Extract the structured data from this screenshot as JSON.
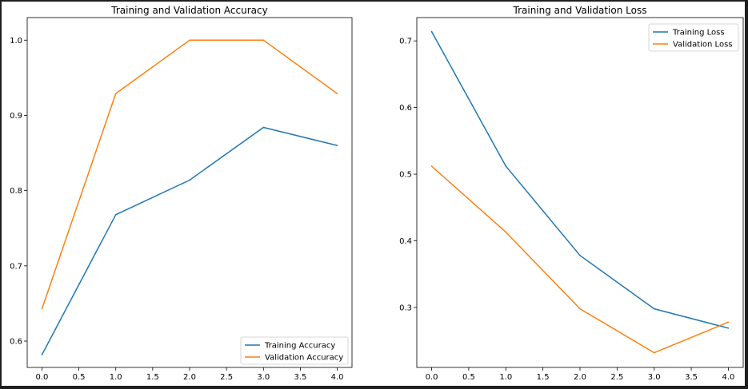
{
  "chart_data": [
    {
      "type": "line",
      "title": "Training and Validation Accuracy",
      "xlabel": "",
      "ylabel": "",
      "xlim": [
        -0.2,
        4.2
      ],
      "ylim": [
        0.565,
        1.03
      ],
      "xticks": [
        "0.0",
        "0.5",
        "1.0",
        "1.5",
        "2.0",
        "2.5",
        "3.0",
        "3.5",
        "4.0"
      ],
      "yticks": [
        "0.6",
        "0.7",
        "0.8",
        "0.9",
        "1.0"
      ],
      "x": [
        0,
        1,
        2,
        3,
        4
      ],
      "series": [
        {
          "name": "Training Accuracy",
          "color": "#1f77b4",
          "values": [
            0.582,
            0.768,
            0.814,
            0.884,
            0.86
          ]
        },
        {
          "name": "Validation Accuracy",
          "color": "#ff7f0e",
          "values": [
            0.643,
            0.929,
            1.0,
            1.0,
            0.929
          ]
        }
      ],
      "legend": "lower-right",
      "grid": false
    },
    {
      "type": "line",
      "title": "Training and Validation Loss",
      "xlabel": "",
      "ylabel": "",
      "xlim": [
        -0.2,
        4.2
      ],
      "ylim": [
        0.21,
        0.735
      ],
      "xticks": [
        "0.0",
        "0.5",
        "1.0",
        "1.5",
        "2.0",
        "2.5",
        "3.0",
        "3.5",
        "4.0"
      ],
      "yticks": [
        "0.3",
        "0.4",
        "0.5",
        "0.6",
        "0.7"
      ],
      "x": [
        0,
        1,
        2,
        3,
        4
      ],
      "series": [
        {
          "name": "Training Loss",
          "color": "#1f77b4",
          "values": [
            0.714,
            0.512,
            0.378,
            0.298,
            0.269
          ]
        },
        {
          "name": "Validation Loss",
          "color": "#ff7f0e",
          "values": [
            0.512,
            0.413,
            0.298,
            0.232,
            0.278
          ]
        }
      ],
      "legend": "upper-right",
      "grid": false
    }
  ]
}
